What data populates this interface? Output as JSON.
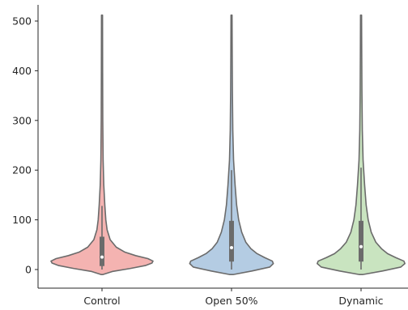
{
  "chart_data": {
    "type": "violin",
    "categories": [
      "Control",
      "Open 50%",
      "Dynamic"
    ],
    "title": "",
    "xlabel": "",
    "ylabel": "",
    "ylim": [
      -8,
      520
    ],
    "yticks": [
      0,
      100,
      200,
      300,
      400,
      500
    ],
    "grid": false,
    "spines": "left-bottom",
    "series": [
      {
        "category": "Control",
        "color": "#f4b3b1",
        "edge_color": "#6b6b6b",
        "min": -10,
        "max": 512,
        "q1": 7,
        "median": 25,
        "q3": 66,
        "whisker_low": 0,
        "whisker_high": 128,
        "density_profile": [
          [
            -10,
            0.02
          ],
          [
            -4,
            0.2
          ],
          [
            2,
            0.55
          ],
          [
            8,
            0.85
          ],
          [
            13,
            0.98
          ],
          [
            17,
            1.0
          ],
          [
            22,
            0.9
          ],
          [
            28,
            0.66
          ],
          [
            35,
            0.45
          ],
          [
            45,
            0.28
          ],
          [
            60,
            0.16
          ],
          [
            80,
            0.1
          ],
          [
            100,
            0.075
          ],
          [
            130,
            0.055
          ],
          [
            170,
            0.035
          ],
          [
            220,
            0.022
          ],
          [
            300,
            0.015
          ],
          [
            400,
            0.012
          ],
          [
            512,
            0.01
          ]
        ]
      },
      {
        "category": "Open 50%",
        "color": "#b4cce3",
        "edge_color": "#6b6b6b",
        "min": -10,
        "max": 512,
        "q1": 16,
        "median": 44,
        "q3": 98,
        "whisker_low": 0,
        "whisker_high": 200,
        "density_profile": [
          [
            -10,
            0.04
          ],
          [
            -3,
            0.4
          ],
          [
            5,
            0.75
          ],
          [
            12,
            0.82
          ],
          [
            17,
            0.8
          ],
          [
            24,
            0.65
          ],
          [
            32,
            0.5
          ],
          [
            42,
            0.38
          ],
          [
            55,
            0.28
          ],
          [
            75,
            0.2
          ],
          [
            100,
            0.14
          ],
          [
            130,
            0.1
          ],
          [
            170,
            0.07
          ],
          [
            220,
            0.04
          ],
          [
            280,
            0.025
          ],
          [
            360,
            0.017
          ],
          [
            440,
            0.013
          ],
          [
            512,
            0.01
          ]
        ]
      },
      {
        "category": "Dynamic",
        "color": "#c9e4c0",
        "edge_color": "#6b6b6b",
        "min": -10,
        "max": 512,
        "q1": 16,
        "median": 46,
        "q3": 98,
        "whisker_low": 0,
        "whisker_high": 205,
        "density_profile": [
          [
            -10,
            0.04
          ],
          [
            -3,
            0.42
          ],
          [
            5,
            0.78
          ],
          [
            12,
            0.86
          ],
          [
            17,
            0.84
          ],
          [
            24,
            0.68
          ],
          [
            32,
            0.52
          ],
          [
            42,
            0.4
          ],
          [
            55,
            0.29
          ],
          [
            75,
            0.2
          ],
          [
            100,
            0.14
          ],
          [
            130,
            0.1
          ],
          [
            170,
            0.07
          ],
          [
            220,
            0.04
          ],
          [
            280,
            0.025
          ],
          [
            360,
            0.017
          ],
          [
            440,
            0.013
          ],
          [
            512,
            0.01
          ]
        ]
      }
    ]
  }
}
